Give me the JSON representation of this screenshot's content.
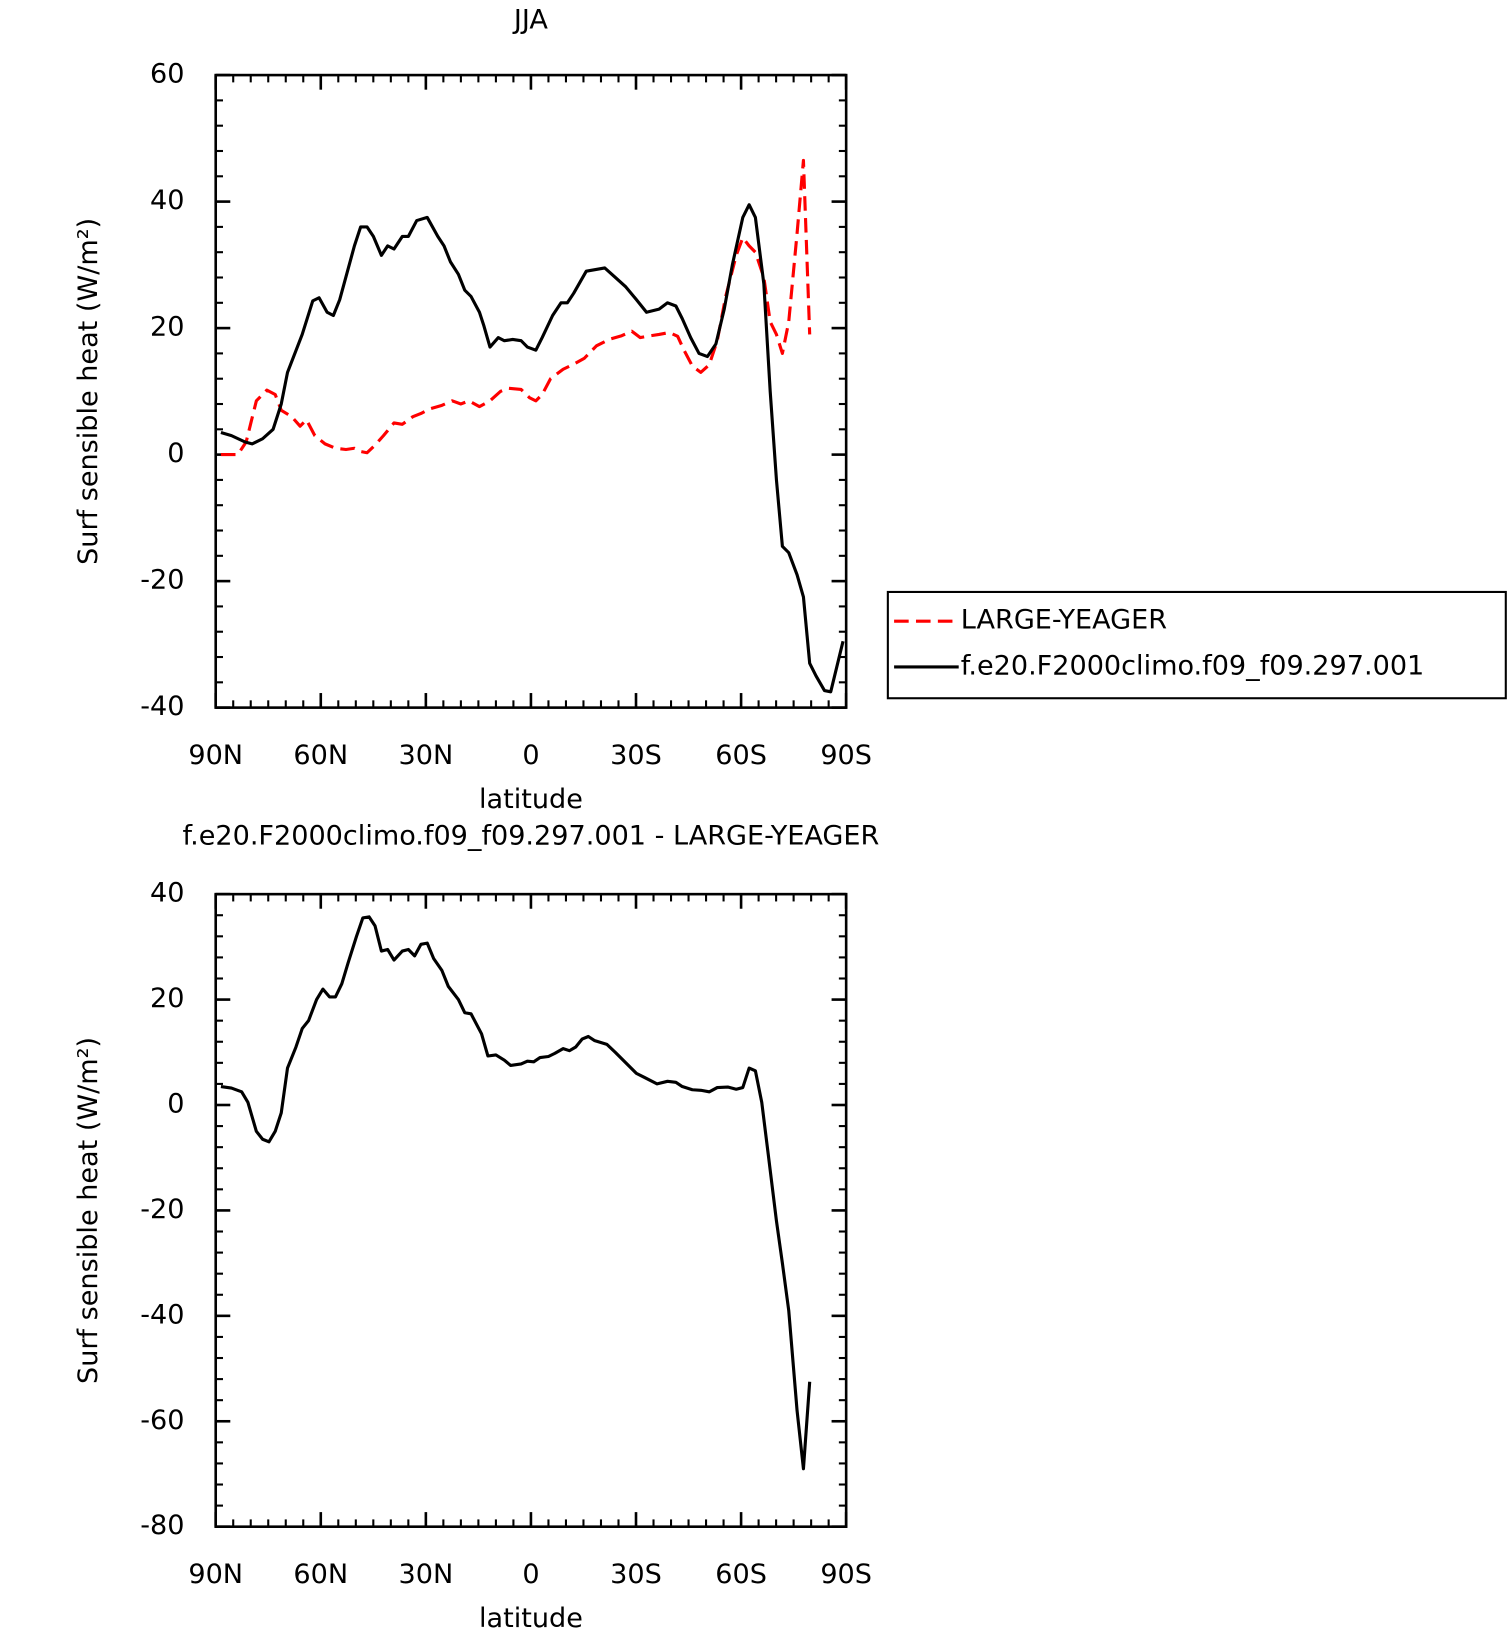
{
  "chart_data": [
    {
      "type": "line",
      "title": "JJA",
      "xlabel": "latitude",
      "ylabel": "Surf sensible heat (W/m²)",
      "xlim": [
        90,
        -90
      ],
      "xticks": [
        {
          "value": 90,
          "label": "90N"
        },
        {
          "value": 60,
          "label": "60N"
        },
        {
          "value": 30,
          "label": "30N"
        },
        0,
        {
          "value": -30,
          "label": "30S"
        },
        {
          "value": -60,
          "label": "60S"
        },
        {
          "value": -90,
          "label": "90S"
        }
      ],
      "ylim": [
        -40,
        60
      ],
      "yticks": [
        -40,
        -20,
        0,
        20,
        40,
        60
      ],
      "legend": "right",
      "series": [
        {
          "name": "LARGE-YEAGER",
          "color": "#ff0000",
          "linestyle": "dashed",
          "x": [
            88.5,
            83.7,
            81.3,
            78.4,
            75.4,
            73,
            71.3,
            68.3,
            65.9,
            64.1,
            61.7,
            58.8,
            55.8,
            52.8,
            50.4,
            48.6,
            46.8,
            44.5,
            42.1,
            39.1,
            36.7,
            33.7,
            31.4,
            29,
            25.4,
            22.5,
            20,
            17.7,
            14.7,
            11.7,
            8.7,
            6.4,
            2.8,
            0.4,
            -1.4,
            -3.2,
            -5.6,
            -9.2,
            -12.2,
            -15.2,
            -18.7,
            -22.3,
            -25.9,
            -28.8,
            -31.2,
            -34.2,
            -36.6,
            -39.5,
            -41.9,
            -43.7,
            -46.1,
            -48.5,
            -50.9,
            -53.2,
            -55.6,
            -58.6,
            -60.5,
            -62.3,
            -64.1,
            -66.5,
            -68.3,
            -70.1,
            -71.8,
            -73.6,
            -76,
            -77.8,
            -79.6
          ],
          "values": [
            0,
            0,
            2,
            8.5,
            10.2,
            9.5,
            7,
            6,
            4.5,
            5.5,
            3,
            1.7,
            1,
            0.8,
            1,
            0.5,
            0.3,
            1.5,
            3,
            5,
            4.8,
            6,
            6.5,
            7.2,
            7.8,
            8.5,
            8,
            8.5,
            7.6,
            8.5,
            10,
            10.5,
            10.3,
            9,
            8.5,
            9.5,
            12,
            13.5,
            14.3,
            15.2,
            17.2,
            18.2,
            18.8,
            19.5,
            18.5,
            18.8,
            19,
            19.3,
            18.7,
            16.5,
            14,
            13,
            14.2,
            18,
            25,
            31.5,
            34.3,
            33,
            32,
            28,
            21,
            19,
            16,
            21,
            35,
            46.5,
            19
          ]
        },
        {
          "name": "f.e20.F2000climo.f09_f09.297.001",
          "color": "#000000",
          "linestyle": "solid",
          "x": [
            88.5,
            85.5,
            81.6,
            79.6,
            76.6,
            73.6,
            71.3,
            69.5,
            65.3,
            62.3,
            60.5,
            58.2,
            56.4,
            54.6,
            50.4,
            48.6,
            46.8,
            45,
            42.7,
            40.9,
            39.1,
            36.7,
            35,
            32.6,
            29.6,
            26.6,
            24.8,
            23,
            20.7,
            18.9,
            17.1,
            14.7,
            13.5,
            11.7,
            9.3,
            7.6,
            5.2,
            2.8,
            1,
            -1.4,
            -3.2,
            -6.2,
            -8.6,
            -10.4,
            -12.2,
            -15.8,
            -21.1,
            -24.1,
            -27.1,
            -30.1,
            -33,
            -36.6,
            -39,
            -41.4,
            -43.2,
            -45.6,
            -48,
            -50.4,
            -52.8,
            -55.2,
            -57.5,
            -60.5,
            -62.3,
            -64.1,
            -66.5,
            -68.3,
            -70.1,
            -71.8,
            -73.6,
            -76,
            -77.8,
            -79.6,
            -81.4,
            -83.8,
            -85.6,
            -89.1
          ],
          "values": [
            3.5,
            3,
            2,
            1.7,
            2.5,
            4,
            8,
            13,
            19,
            24.3,
            24.8,
            22.5,
            22,
            24.5,
            33,
            36,
            36,
            34.5,
            31.5,
            33,
            32.5,
            34.5,
            34.5,
            37,
            37.5,
            34.5,
            33,
            30.5,
            28.5,
            26,
            25,
            22.5,
            20.5,
            17,
            18.5,
            18,
            18.2,
            18,
            17,
            16.5,
            18.5,
            22,
            24,
            24,
            25.5,
            29,
            29.5,
            28,
            26.5,
            24.5,
            22.5,
            23,
            24,
            23.5,
            21.5,
            18.5,
            16,
            15.5,
            17.5,
            23,
            30,
            37.5,
            39.5,
            37.5,
            27,
            10,
            -4,
            -14.5,
            -15.5,
            -19,
            -22.5,
            -33,
            -35,
            -37.3,
            -37.5,
            -29.5
          ]
        }
      ]
    },
    {
      "type": "line",
      "title": "f.e20.F2000climo.f09_f09.297.001 - LARGE-YEAGER",
      "xlabel": "latitude",
      "ylabel": "Surf sensible heat (W/m²)",
      "xlim": [
        90,
        -90
      ],
      "xticks": [
        {
          "value": 90,
          "label": "90N"
        },
        {
          "value": 60,
          "label": "60N"
        },
        {
          "value": 30,
          "label": "30N"
        },
        0,
        {
          "value": -30,
          "label": "30S"
        },
        {
          "value": -60,
          "label": "60S"
        },
        {
          "value": -90,
          "label": "90S"
        }
      ],
      "ylim": [
        -80,
        40
      ],
      "yticks": [
        -80,
        -60,
        -40,
        -20,
        0,
        20,
        40
      ],
      "series": [
        {
          "color": "#000000",
          "linestyle": "solid",
          "x": [
            88.5,
            85.5,
            82.6,
            80.8,
            78.4,
            76.6,
            74.8,
            73,
            71.3,
            69.5,
            67.1,
            65.3,
            63.5,
            61.2,
            59.4,
            57.5,
            55.8,
            54,
            52.2,
            49.8,
            48,
            46.2,
            44.5,
            42.7,
            40.9,
            39.1,
            36.7,
            35,
            33.2,
            31.4,
            29.6,
            27.8,
            25.4,
            23.6,
            20.7,
            18.9,
            17.1,
            14.1,
            12.3,
            10,
            7.6,
            5.8,
            2.8,
            1,
            -0.8,
            -2.6,
            -5,
            -6.8,
            -9.2,
            -11,
            -12.8,
            -14.6,
            -16.4,
            -18.2,
            -21.7,
            -24.1,
            -27.1,
            -30.1,
            -32.5,
            -36,
            -39,
            -41.4,
            -43.2,
            -46.1,
            -48.5,
            -50.9,
            -53.2,
            -56.2,
            -58.6,
            -60.5,
            -62.3,
            -64.1,
            -65.9,
            -67.7,
            -70.1,
            -71.8,
            -73.6,
            -76,
            -77.8,
            -79.6
          ],
          "values": [
            3.5,
            3.2,
            2.5,
            0.5,
            -5,
            -6.5,
            -7,
            -5,
            -1.5,
            7,
            11,
            14.5,
            16,
            20,
            22,
            20.5,
            20.5,
            23,
            27,
            32,
            35.5,
            35.7,
            34,
            29.2,
            29.5,
            27.5,
            29.2,
            29.5,
            28.3,
            30.5,
            30.7,
            27.8,
            25.5,
            22.5,
            20,
            17.5,
            17.3,
            13.5,
            9.3,
            9.5,
            8.5,
            7.5,
            7.8,
            8.3,
            8.2,
            9,
            9.2,
            9.8,
            10.7,
            10.3,
            11,
            12.5,
            13,
            12.2,
            11.5,
            10,
            8,
            6,
            5.2,
            4,
            4.5,
            4.3,
            3.5,
            2.9,
            2.8,
            2.5,
            3.3,
            3.4,
            3,
            3.3,
            7,
            6.5,
            0.5,
            -9,
            -22,
            -30,
            -39,
            -58,
            -69,
            -52.5
          ]
        }
      ]
    }
  ]
}
